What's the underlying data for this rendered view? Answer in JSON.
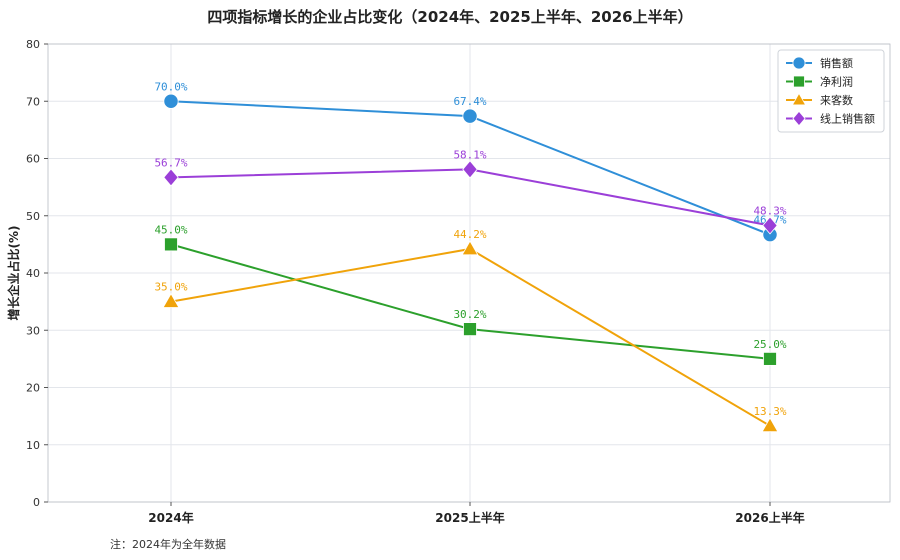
{
  "chart_data": {
    "type": "line",
    "title": "四项指标增长的企业占比变化（2024年、2025上半年、2026上半年）",
    "xlabel": "",
    "ylabel": "增长企业占比(%)",
    "categories": [
      "2024年",
      "2025上半年",
      "2026上半年"
    ],
    "ylim": [
      0,
      80
    ],
    "yticks": [
      0,
      10,
      20,
      30,
      40,
      50,
      60,
      70,
      80
    ],
    "grid": true,
    "legend_position": "top-right",
    "series": [
      {
        "name": "销售额",
        "values": [
          70.0,
          67.4,
          46.7
        ],
        "labels": [
          "70.0%",
          "67.4%",
          "46.7%"
        ],
        "color": "#2f8fd8",
        "marker": "circle"
      },
      {
        "name": "净利润",
        "values": [
          45.0,
          30.2,
          25.0
        ],
        "labels": [
          "45.0%",
          "30.2%",
          "25.0%"
        ],
        "color": "#2ca02c",
        "marker": "square"
      },
      {
        "name": "来客数",
        "values": [
          35.0,
          44.2,
          13.3
        ],
        "labels": [
          "35.0%",
          "44.2%",
          "13.3%"
        ],
        "color": "#f0a30a",
        "marker": "triangle"
      },
      {
        "name": "线上销售额",
        "values": [
          56.7,
          58.1,
          48.3
        ],
        "labels": [
          "56.7%",
          "58.1%",
          "48.3%"
        ],
        "color": "#9b3fd8",
        "marker": "diamond"
      }
    ],
    "note": "注：2024年为全年数据"
  }
}
